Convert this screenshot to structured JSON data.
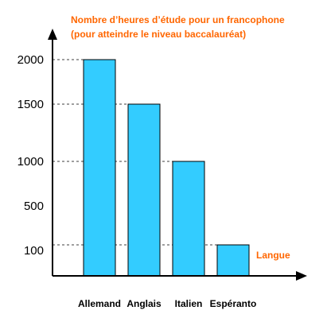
{
  "chart_data": {
    "type": "bar",
    "title": [
      "Nombre d’heures d’étude pour un francophone",
      "(pour atteindre le niveau baccalauréat)"
    ],
    "xlabel": "Langue",
    "ylabel": "",
    "categories": [
      "Allemand",
      "Anglais",
      "Italien",
      "Espéranto"
    ],
    "values": [
      2000,
      1500,
      1000,
      150
    ],
    "yticks": [
      "100",
      "500",
      "1000",
      "1500",
      "2000"
    ],
    "grid": "dashed at data levels",
    "colors": {
      "bar": "#33ccff",
      "accent": "#ff6600",
      "axis": "#000000"
    }
  }
}
